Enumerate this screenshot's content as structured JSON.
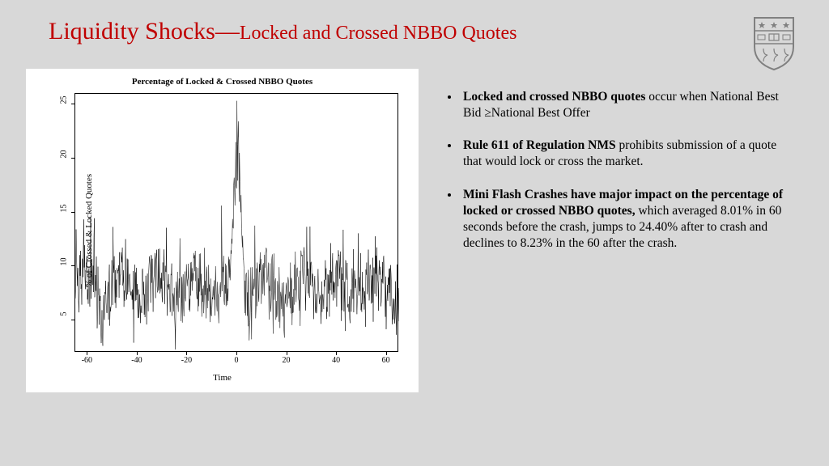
{
  "title_main": "Liquidity Shocks",
  "title_sep": "—",
  "title_sub": "Locked and Crossed NBBO Quotes",
  "chart": {
    "title": "Percentage of Locked & Crossed NBBO Quotes",
    "xlabel": "Time",
    "ylabel": "% of Crossed & Locked Quotes",
    "xlim": [
      -65,
      65
    ],
    "ylim": [
      2,
      26
    ],
    "xticks": [
      -60,
      -40,
      -20,
      0,
      20,
      40,
      60
    ],
    "yticks": [
      5,
      10,
      15,
      20,
      25
    ],
    "line_color": "#000000",
    "background_color": "#ffffff",
    "border_color": "#000000",
    "line_width": 0.5,
    "n_points": 800,
    "baseline_mean": 8.0,
    "noise_amplitude_low": 2.5,
    "noise_amplitude_high": 5.5,
    "spike_center": 0,
    "spike_peak": 24.5,
    "spike_width": 3,
    "seed": 12345
  },
  "bullets": [
    {
      "bold": "Locked and crossed NBBO quotes",
      "rest": " occur when National Best Bid ≥National Best Offer"
    },
    {
      "bold": "Rule 611 of Regulation NMS",
      "rest": " prohibits submission of a quote that would lock or cross the market."
    },
    {
      "bold": "Mini Flash Crashes have major impact on the percentage of locked or crossed NBBO quotes,",
      "rest": " which averaged 8.01% in 60 seconds before the crash, jumps to 24.40% after to crash and declines to 8.23% in the 60 after the crash."
    }
  ],
  "colors": {
    "slide_bg": "#d8d8d8",
    "title": "#c00000",
    "text": "#000000",
    "shield": "#808080"
  }
}
